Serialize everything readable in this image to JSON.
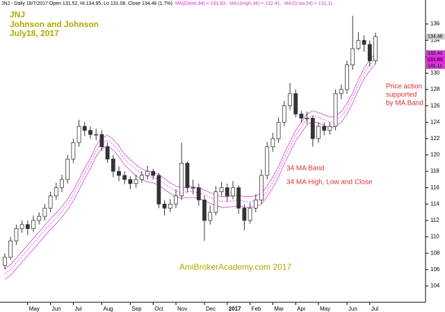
{
  "chart_data": {
    "type": "candlestick",
    "header": "JNJ - Daily 18/7/2017 Open 131.52, Hi 134.95, Lo 131.08, Close 134.46 (1.7%)",
    "title_lines": [
      "JNJ",
      "Johnson and Johnson",
      "July18, 2017"
    ],
    "annotations": {
      "support": [
        "Price action",
        "supported",
        "by MA Band"
      ],
      "band": "34 MA Band",
      "band_detail": "34 MA High, Low and Close",
      "watermark": "AmiBrokerAcademy.com  2017"
    },
    "categories": [
      null,
      null,
      null,
      null,
      "May",
      null,
      null,
      null,
      "Jun",
      null,
      null,
      null,
      "Jul",
      null,
      null,
      null,
      null,
      "Aug",
      null,
      null,
      null,
      null,
      "Sep",
      null,
      null,
      null,
      "Oct",
      null,
      null,
      null,
      "Nov",
      null,
      null,
      null,
      null,
      "Dec",
      null,
      null,
      null,
      "2017",
      null,
      null,
      null,
      "Feb",
      null,
      null,
      null,
      "Mar",
      null,
      null,
      null,
      "Apr",
      null,
      null,
      null,
      "May",
      null,
      null,
      null,
      null,
      "Jun",
      null,
      null,
      null,
      "Jul",
      null
    ],
    "up_color": "#ffffff",
    "down_color": "#333333",
    "outline_color": "#333333",
    "open": [
      106.5,
      107.5,
      109.5,
      111,
      111.5,
      111,
      112,
      112.5,
      113.5,
      115,
      116,
      117,
      119.5,
      121.5,
      123.5,
      123,
      122.5,
      122.5,
      121,
      119.5,
      118,
      117.5,
      117,
      116.5,
      117,
      117.5,
      118,
      117.5,
      114,
      113.5,
      114,
      115,
      119,
      116,
      116,
      114.5,
      112,
      113,
      115.5,
      116,
      115,
      116,
      113.5,
      112,
      113.5,
      114.5,
      117.5,
      121,
      122,
      124,
      126,
      127.5,
      125,
      124.5,
      124.5,
      122,
      123.5,
      123,
      123.5,
      127.5,
      128,
      131,
      133,
      134,
      133.5,
      131.5
    ],
    "high": [
      108,
      110,
      111.5,
      112,
      112,
      112.6,
      113,
      114,
      115.5,
      116.6,
      117.6,
      120,
      122,
      124.3,
      124,
      123.5,
      123.2,
      123,
      121.5,
      120,
      118.6,
      118,
      117.4,
      117.6,
      118,
      118.7,
      118.3,
      117.8,
      114.5,
      114.6,
      115.8,
      121.5,
      119.2,
      117,
      116.5,
      115,
      113.8,
      116.2,
      116.7,
      116.5,
      116.8,
      116.3,
      114,
      114.2,
      115.2,
      118.2,
      121.6,
      122.7,
      124.6,
      126.6,
      128.8,
      128,
      125.4,
      125.3,
      124.8,
      124,
      124,
      124,
      128,
      128.6,
      131.5,
      137,
      135,
      134.6,
      134,
      134.95
    ],
    "low": [
      106,
      107.2,
      109,
      110.5,
      110.2,
      110.6,
      111.5,
      112,
      113,
      114.5,
      115.5,
      116.5,
      119,
      121,
      122.3,
      122,
      121.8,
      120.5,
      119,
      117.3,
      116.8,
      116.4,
      115.8,
      116,
      116.6,
      117,
      117,
      113.5,
      112.6,
      113,
      113.5,
      114.5,
      115.4,
      115.2,
      113.8,
      109.5,
      111.5,
      112.6,
      115,
      114.3,
      114.6,
      112.8,
      110.8,
      111.6,
      113,
      114,
      117,
      120.4,
      121.5,
      123.5,
      125.5,
      124.6,
      124,
      123.8,
      121,
      121.5,
      122.4,
      122.5,
      123,
      126.8,
      127.5,
      130.4,
      132.8,
      132.6,
      130.8,
      131.08
    ],
    "close": [
      107.5,
      109.5,
      111,
      111.5,
      111,
      112,
      112.5,
      113.5,
      115,
      116,
      117,
      119.5,
      121.5,
      123.5,
      123,
      122.5,
      122.5,
      121,
      119.5,
      118,
      117.5,
      117,
      116.5,
      117,
      117.5,
      118,
      117.5,
      114,
      113.5,
      114,
      115,
      119,
      116,
      116,
      114.5,
      112,
      113,
      115.5,
      116,
      115,
      116,
      113.5,
      112,
      113.5,
      114.5,
      117.5,
      121,
      122,
      124,
      126,
      127.5,
      125,
      124.5,
      124.5,
      122,
      123.5,
      123,
      123.5,
      127.5,
      128,
      131,
      133,
      134,
      133.5,
      131.5,
      134.46
    ],
    "series": [
      {
        "name": "MA(Close,34) = 131.83,",
        "color": "#e020e0",
        "dashed": true,
        "values": [
          105.5,
          106,
          106.8,
          107.6,
          108.4,
          109.2,
          110,
          110.8,
          111.6,
          112.3,
          113.1,
          114,
          115.1,
          116.4,
          117.8,
          119,
          120.5,
          121.5,
          121.8,
          121.3,
          120.5,
          119.5,
          118.8,
          118.2,
          117.7,
          117.4,
          117.3,
          117,
          116.5,
          116,
          115.6,
          115.4,
          115.5,
          115.5,
          115.4,
          115.1,
          114.8,
          114.5,
          114.3,
          114.3,
          114.4,
          114.5,
          114.3,
          114.3,
          114.4,
          114.7,
          115.6,
          116.7,
          118,
          119.6,
          121,
          122.4,
          123.4,
          124.4,
          124.8,
          124.6,
          124.3,
          124,
          124.2,
          124.7,
          125.7,
          127,
          128.6,
          130,
          131,
          131.83
        ]
      },
      {
        "name": "MA1(High,34) = 132.41,",
        "color": "#d040d0",
        "dashed": false,
        "values": [
          106.1,
          106.6,
          107.4,
          108.2,
          109,
          109.8,
          110.6,
          111.4,
          112.2,
          112.9,
          113.7,
          114.6,
          115.7,
          117,
          118.4,
          119.6,
          121.1,
          122.1,
          122.4,
          121.9,
          121.1,
          120.1,
          119.4,
          118.8,
          118.3,
          118,
          117.9,
          117.6,
          117.1,
          116.6,
          116.2,
          116,
          116.1,
          116.1,
          116,
          115.7,
          115.4,
          115.1,
          114.9,
          114.9,
          115,
          115.1,
          114.9,
          114.9,
          115,
          115.3,
          116.2,
          117.3,
          118.6,
          120.2,
          121.6,
          123,
          124,
          125,
          125.4,
          125.2,
          124.9,
          124.6,
          124.8,
          125.3,
          126.3,
          127.6,
          129.2,
          130.6,
          131.6,
          132.41
        ]
      },
      {
        "name": "MA2(Low,34) = 131.11",
        "color": "#d040d0",
        "dashed": false,
        "values": [
          104.8,
          105.3,
          106.1,
          106.9,
          107.7,
          108.5,
          109.3,
          110.1,
          110.9,
          111.6,
          112.4,
          113.3,
          114.4,
          115.7,
          117.1,
          118.3,
          119.8,
          120.8,
          121.1,
          120.6,
          119.8,
          118.8,
          118.1,
          117.5,
          117,
          116.7,
          116.6,
          116.3,
          115.8,
          115.3,
          114.9,
          114.7,
          114.8,
          114.8,
          114.7,
          114.4,
          114.1,
          113.8,
          113.6,
          113.6,
          113.7,
          113.8,
          113.6,
          113.6,
          113.7,
          114,
          114.9,
          116,
          117.3,
          118.9,
          120.3,
          121.7,
          122.7,
          123.7,
          124.1,
          123.9,
          123.6,
          123.3,
          123.5,
          124,
          125,
          126.3,
          127.9,
          129.3,
          130.3,
          131.11
        ]
      }
    ],
    "ylim": [
      102,
      138
    ],
    "yticks": [
      104,
      106,
      108,
      110,
      112,
      114,
      116,
      118,
      120,
      122,
      124,
      126,
      128,
      130,
      132,
      134,
      136
    ],
    "grid": false
  }
}
